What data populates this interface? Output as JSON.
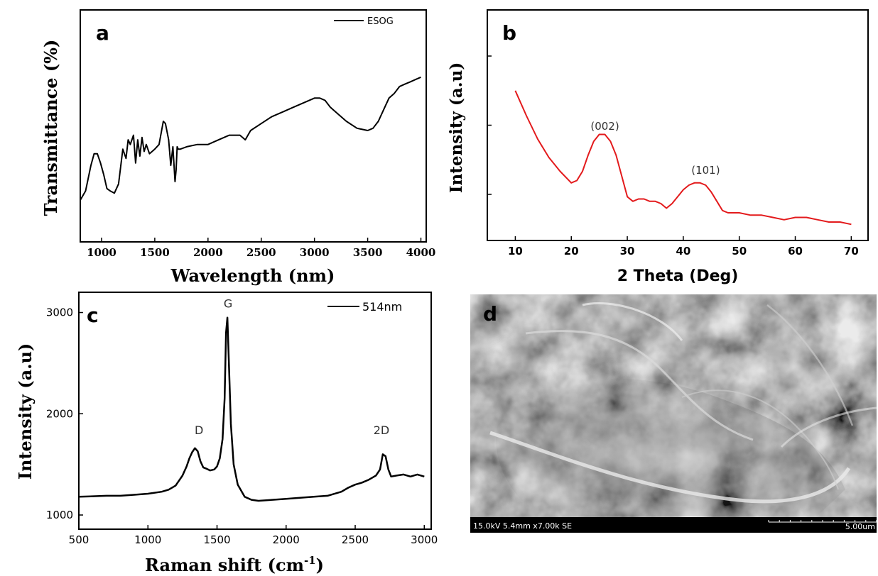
{
  "colors": {
    "ink": "#000000",
    "xrd_line": "#e31a1c",
    "peak_label": "#333333",
    "sem_bar": "#000000",
    "sem_text": "#ffffff"
  },
  "chart_data": [
    {
      "panel": "a",
      "type": "line",
      "xlabel": "Wavelength (nm)",
      "ylabel": "Transmittance (%)",
      "xlim": [
        800,
        4050
      ],
      "ylim": [
        0,
        100
      ],
      "x_ticks": [
        "1000",
        "1500",
        "2000",
        "2500",
        "3000",
        "3500",
        "4000"
      ],
      "y_ticks": [],
      "legend": {
        "position": "top-right"
      },
      "grid": false,
      "series": [
        {
          "name": "ESOG",
          "color": "#000000",
          "x": [
            800,
            850,
            900,
            930,
            960,
            990,
            1020,
            1050,
            1080,
            1120,
            1160,
            1200,
            1230,
            1250,
            1270,
            1300,
            1320,
            1340,
            1360,
            1380,
            1400,
            1420,
            1450,
            1500,
            1540,
            1580,
            1600,
            1630,
            1650,
            1670,
            1690,
            1700,
            1710,
            1720,
            1740,
            1800,
            1900,
            2000,
            2100,
            2200,
            2300,
            2350,
            2400,
            2500,
            2600,
            2700,
            2800,
            2900,
            3000,
            3050,
            3100,
            3150,
            3200,
            3300,
            3400,
            3500,
            3550,
            3600,
            3650,
            3700,
            3750,
            3800,
            3850,
            3900,
            3950,
            4000
          ],
          "y": [
            18,
            22,
            33,
            38,
            38,
            34,
            29,
            23,
            22,
            21,
            25,
            40,
            36,
            44,
            42,
            46,
            34,
            44,
            37,
            45,
            39,
            42,
            38,
            40,
            42,
            52,
            51,
            44,
            33,
            41,
            26,
            31,
            41,
            40,
            40,
            41,
            42,
            42,
            44,
            46,
            46,
            44,
            48,
            51,
            54,
            56,
            58,
            60,
            62,
            62,
            61,
            58,
            56,
            52,
            49,
            48,
            49,
            52,
            57,
            62,
            64,
            67,
            68,
            69,
            70,
            71
          ]
        }
      ]
    },
    {
      "panel": "b",
      "type": "line",
      "xlabel": "2 Theta (Deg)",
      "ylabel": "Intensity (a.u)",
      "xlim": [
        5,
        73
      ],
      "ylim": [
        0,
        100
      ],
      "x_ticks": [
        "10",
        "20",
        "30",
        "40",
        "50",
        "60",
        "70"
      ],
      "y_ticks": [],
      "grid": false,
      "annotations": [
        {
          "text": "(002)",
          "x": 26,
          "y": 48
        },
        {
          "text": "(101)",
          "x": 44,
          "y": 29
        }
      ],
      "series": [
        {
          "color": "#e31a1c",
          "x": [
            10,
            12,
            14,
            16,
            18,
            20,
            21,
            22,
            23,
            24,
            25,
            26,
            27,
            28,
            29,
            30,
            31,
            32,
            33,
            34,
            35,
            36,
            37,
            38,
            39,
            40,
            41,
            42,
            43,
            44,
            45,
            46,
            47,
            48,
            50,
            52,
            54,
            56,
            58,
            60,
            62,
            64,
            66,
            68,
            70
          ],
          "y": [
            65,
            54,
            44,
            36,
            30,
            25,
            26,
            30,
            37,
            43,
            46,
            46,
            43,
            37,
            28,
            19,
            17,
            18,
            18,
            17,
            17,
            16,
            14,
            16,
            19,
            22,
            24,
            25,
            25,
            24,
            21,
            17,
            13,
            12,
            12,
            11,
            11,
            10,
            9,
            10,
            10,
            9,
            8,
            8,
            7
          ]
        }
      ]
    },
    {
      "panel": "c",
      "type": "line",
      "xlabel": "Raman shift (cm",
      "xlabel_sup": "-1",
      "xlabel_end": ")",
      "ylabel": "Intensity (a.u)",
      "xlim": [
        500,
        3050
      ],
      "ylim": [
        860,
        3200
      ],
      "x_ticks": [
        "500",
        "1000",
        "1500",
        "2000",
        "2500",
        "3000"
      ],
      "y_ticks": [
        "1000",
        "2000",
        "3000"
      ],
      "legend": {
        "position": "top-right"
      },
      "grid": false,
      "annotations": [
        {
          "text": "D",
          "x": 1370,
          "y": 1800
        },
        {
          "text": "G",
          "x": 1580,
          "y": 3050
        },
        {
          "text": "2D",
          "x": 2690,
          "y": 1800
        }
      ],
      "series": [
        {
          "name": "514nm",
          "color": "#000000",
          "x": [
            500,
            600,
            700,
            800,
            900,
            1000,
            1100,
            1150,
            1200,
            1250,
            1280,
            1300,
            1320,
            1340,
            1360,
            1380,
            1400,
            1420,
            1450,
            1480,
            1500,
            1520,
            1540,
            1555,
            1565,
            1575,
            1585,
            1600,
            1620,
            1650,
            1700,
            1750,
            1800,
            1900,
            2000,
            2100,
            2200,
            2300,
            2400,
            2450,
            2500,
            2550,
            2600,
            2650,
            2680,
            2700,
            2720,
            2740,
            2760,
            2800,
            2850,
            2900,
            2950,
            3000
          ],
          "y": [
            1180,
            1185,
            1190,
            1190,
            1200,
            1210,
            1230,
            1250,
            1290,
            1390,
            1480,
            1560,
            1620,
            1660,
            1630,
            1530,
            1470,
            1460,
            1440,
            1450,
            1480,
            1560,
            1750,
            2150,
            2800,
            2950,
            2550,
            1900,
            1500,
            1300,
            1180,
            1150,
            1140,
            1150,
            1160,
            1170,
            1180,
            1190,
            1230,
            1270,
            1300,
            1320,
            1350,
            1390,
            1450,
            1600,
            1580,
            1450,
            1380,
            1390,
            1400,
            1380,
            1400,
            1380
          ]
        }
      ]
    }
  ],
  "sem": {
    "panel_label": "d",
    "info_text": "15.0kV 5.4mm x7.00k SE",
    "scale_text": "5.00um"
  }
}
